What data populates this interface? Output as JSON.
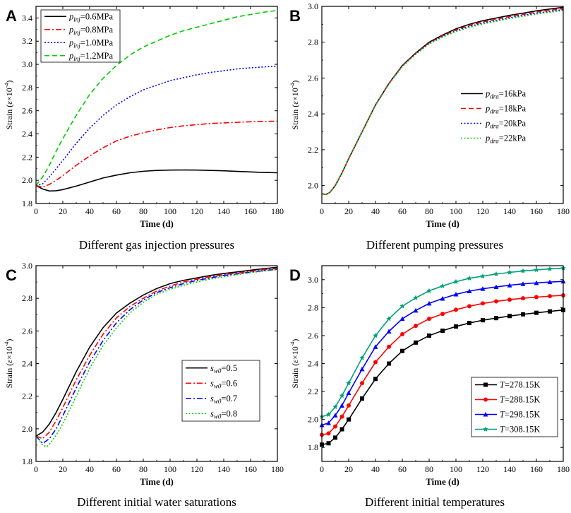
{
  "chart_data": [
    {
      "panel_label": "A",
      "type": "line",
      "caption": "Different gas injection pressures",
      "xlabel": "Time (d)",
      "ylabel": {
        "prefix": "Strain (",
        "symbol": "ε",
        "unit": "×10",
        "exp": "-4",
        "suffix": ")"
      },
      "xlim": [
        0,
        180
      ],
      "ylim": [
        1.8,
        3.5
      ],
      "xticks": [
        0,
        20,
        40,
        60,
        80,
        100,
        120,
        140,
        160,
        180
      ],
      "yticks": [
        1.8,
        2.0,
        2.2,
        2.4,
        2.6,
        2.8,
        3.0,
        3.2,
        3.4
      ],
      "legend_position": "top-left",
      "series": [
        {
          "name": "p_inj=0.6MPa",
          "sym": "p",
          "sub": "inj",
          "val": "=0.6MPa",
          "color": "#000000",
          "dash": "solid",
          "x": [
            0,
            5,
            10,
            15,
            20,
            30,
            40,
            50,
            60,
            70,
            80,
            90,
            100,
            110,
            120,
            130,
            140,
            150,
            160,
            170,
            180
          ],
          "y": [
            1.955,
            1.925,
            1.908,
            1.91,
            1.92,
            1.95,
            1.985,
            2.02,
            2.045,
            2.065,
            2.078,
            2.085,
            2.088,
            2.089,
            2.088,
            2.085,
            2.082,
            2.077,
            2.072,
            2.068,
            2.065
          ]
        },
        {
          "name": "p_inj=0.8MPa",
          "sym": "p",
          "sub": "inj",
          "val": "=0.8MPa",
          "color": "#ff0000",
          "dash": "dashdot",
          "x": [
            0,
            5,
            10,
            15,
            20,
            30,
            40,
            50,
            60,
            70,
            80,
            90,
            100,
            110,
            120,
            130,
            140,
            150,
            160,
            170,
            180
          ],
          "y": [
            1.955,
            1.94,
            1.965,
            2.0,
            2.04,
            2.13,
            2.21,
            2.28,
            2.34,
            2.38,
            2.41,
            2.435,
            2.455,
            2.47,
            2.48,
            2.49,
            2.495,
            2.5,
            2.505,
            2.508,
            2.51
          ]
        },
        {
          "name": "p_inj=1.0MPa",
          "sym": "p",
          "sub": "inj",
          "val": "=1.0MPa",
          "color": "#0000ff",
          "dash": "dot",
          "x": [
            0,
            5,
            10,
            15,
            20,
            30,
            40,
            50,
            60,
            70,
            80,
            90,
            100,
            110,
            120,
            130,
            140,
            150,
            160,
            170,
            180
          ],
          "y": [
            1.955,
            1.97,
            2.03,
            2.1,
            2.17,
            2.32,
            2.45,
            2.56,
            2.65,
            2.72,
            2.78,
            2.82,
            2.86,
            2.885,
            2.91,
            2.93,
            2.945,
            2.96,
            2.97,
            2.978,
            2.985
          ]
        },
        {
          "name": "p_inj=1.2MPa",
          "sym": "p",
          "sub": "inj",
          "val": "=1.2MPa",
          "color": "#00cc00",
          "dash": "dash",
          "x": [
            0,
            5,
            10,
            15,
            20,
            30,
            40,
            50,
            60,
            70,
            80,
            90,
            100,
            110,
            120,
            130,
            140,
            150,
            160,
            170,
            180
          ],
          "y": [
            1.955,
            2.03,
            2.13,
            2.25,
            2.36,
            2.56,
            2.74,
            2.88,
            2.99,
            3.08,
            3.15,
            3.2,
            3.25,
            3.29,
            3.32,
            3.35,
            3.38,
            3.41,
            3.43,
            3.45,
            3.465
          ]
        }
      ]
    },
    {
      "panel_label": "B",
      "type": "line",
      "caption": "Different pumping pressures",
      "xlabel": "Time (d)",
      "ylabel": {
        "prefix": "Strain (",
        "symbol": "ε",
        "unit": "×10",
        "exp": "-4",
        "suffix": ")"
      },
      "xlim": [
        0,
        180
      ],
      "ylim": [
        1.9,
        3.0
      ],
      "xticks": [
        0,
        20,
        40,
        60,
        80,
        100,
        120,
        140,
        160,
        180
      ],
      "yticks": [
        2.0,
        2.2,
        2.4,
        2.6,
        2.8,
        3.0
      ],
      "legend_position": "center-right",
      "series": [
        {
          "name": "p_dra=16kPa",
          "sym": "p",
          "sub": "dra",
          "val": "=16kPa",
          "color": "#000000",
          "dash": "solid",
          "x": [
            0,
            3,
            6,
            10,
            15,
            20,
            30,
            40,
            50,
            60,
            70,
            80,
            90,
            100,
            110,
            120,
            130,
            140,
            150,
            160,
            170,
            180
          ],
          "y": [
            1.955,
            1.95,
            1.962,
            2.0,
            2.07,
            2.15,
            2.3,
            2.45,
            2.57,
            2.67,
            2.74,
            2.8,
            2.84,
            2.875,
            2.9,
            2.92,
            2.935,
            2.95,
            2.962,
            2.975,
            2.985,
            2.995
          ]
        },
        {
          "name": "p_dra=18kPa",
          "sym": "p",
          "sub": "dra",
          "val": "=18kPa",
          "color": "#ff0000",
          "dash": "dash",
          "x": [
            0,
            3,
            6,
            10,
            15,
            20,
            30,
            40,
            50,
            60,
            70,
            80,
            90,
            100,
            110,
            120,
            130,
            140,
            150,
            160,
            170,
            180
          ],
          "y": [
            1.955,
            1.95,
            1.962,
            2.0,
            2.07,
            2.15,
            2.3,
            2.45,
            2.57,
            2.668,
            2.738,
            2.796,
            2.836,
            2.869,
            2.893,
            2.913,
            2.928,
            2.943,
            2.955,
            2.968,
            2.978,
            2.988
          ]
        },
        {
          "name": "p_dra=20kPa",
          "sym": "p",
          "sub": "dra",
          "val": "=20kPa",
          "color": "#0000ff",
          "dash": "dot",
          "x": [
            0,
            3,
            6,
            10,
            15,
            20,
            30,
            40,
            50,
            60,
            70,
            80,
            90,
            100,
            110,
            120,
            130,
            140,
            150,
            160,
            170,
            180
          ],
          "y": [
            1.955,
            1.95,
            1.962,
            2.0,
            2.07,
            2.15,
            2.3,
            2.45,
            2.568,
            2.666,
            2.735,
            2.793,
            2.832,
            2.864,
            2.888,
            2.907,
            2.922,
            2.937,
            2.95,
            2.962,
            2.972,
            2.982
          ]
        },
        {
          "name": "p_dra=22kPa",
          "sym": "p",
          "sub": "dra",
          "val": "=22kPa",
          "color": "#00cc00",
          "dash": "dot",
          "x": [
            0,
            3,
            6,
            10,
            15,
            20,
            30,
            40,
            50,
            60,
            70,
            80,
            90,
            100,
            110,
            120,
            130,
            140,
            150,
            160,
            170,
            180
          ],
          "y": [
            1.955,
            1.95,
            1.962,
            2.0,
            2.07,
            2.15,
            2.3,
            2.448,
            2.566,
            2.664,
            2.732,
            2.79,
            2.828,
            2.86,
            2.883,
            2.902,
            2.917,
            2.932,
            2.945,
            2.957,
            2.967,
            2.977
          ]
        }
      ]
    },
    {
      "panel_label": "C",
      "type": "line",
      "caption": "Different initial water saturations",
      "xlabel": "Time (d)",
      "ylabel": {
        "prefix": "Strain (",
        "symbol": "ε",
        "unit": "×10",
        "exp": "-4",
        "suffix": ")"
      },
      "xlim": [
        0,
        180
      ],
      "ylim": [
        1.8,
        3.0
      ],
      "xticks": [
        0,
        20,
        40,
        60,
        80,
        100,
        120,
        140,
        160,
        180
      ],
      "yticks": [
        1.8,
        2.0,
        2.2,
        2.4,
        2.6,
        2.8,
        3.0
      ],
      "legend_position": "center-right",
      "series": [
        {
          "name": "s_w0=0.5",
          "sym": "s",
          "sub": "w0",
          "val": "=0.5",
          "color": "#000000",
          "dash": "solid",
          "x": [
            0,
            5,
            10,
            15,
            20,
            30,
            40,
            50,
            60,
            70,
            80,
            90,
            100,
            110,
            120,
            130,
            140,
            150,
            160,
            170,
            180
          ],
          "y": [
            1.955,
            1.98,
            2.03,
            2.1,
            2.18,
            2.35,
            2.5,
            2.62,
            2.71,
            2.77,
            2.82,
            2.86,
            2.89,
            2.91,
            2.925,
            2.94,
            2.952,
            2.962,
            2.972,
            2.982,
            2.99
          ]
        },
        {
          "name": "s_w0=0.6",
          "sym": "s",
          "sub": "w0",
          "val": "=0.6",
          "color": "#ff0000",
          "dash": "dashdot",
          "x": [
            0,
            5,
            10,
            15,
            20,
            30,
            40,
            50,
            60,
            70,
            80,
            90,
            100,
            110,
            120,
            130,
            140,
            150,
            160,
            170,
            180
          ],
          "y": [
            1.955,
            1.94,
            1.98,
            2.05,
            2.13,
            2.3,
            2.45,
            2.58,
            2.68,
            2.75,
            2.8,
            2.845,
            2.875,
            2.9,
            2.917,
            2.932,
            2.945,
            2.955,
            2.965,
            2.975,
            2.983
          ]
        },
        {
          "name": "s_w0=0.7",
          "sym": "s",
          "sub": "w0",
          "val": "=0.7",
          "color": "#0000ff",
          "dash": "dashdot",
          "x": [
            0,
            5,
            10,
            15,
            20,
            30,
            40,
            50,
            60,
            70,
            80,
            90,
            100,
            110,
            120,
            130,
            140,
            150,
            160,
            170,
            180
          ],
          "y": [
            1.955,
            1.91,
            1.94,
            2.0,
            2.08,
            2.25,
            2.41,
            2.54,
            2.65,
            2.73,
            2.79,
            2.835,
            2.865,
            2.89,
            2.91,
            2.925,
            2.94,
            2.95,
            2.96,
            2.97,
            2.978
          ]
        },
        {
          "name": "s_w0=0.8",
          "sym": "s",
          "sub": "w0",
          "val": "=0.8",
          "color": "#00cc00",
          "dash": "dot",
          "x": [
            0,
            5,
            8,
            10,
            15,
            20,
            30,
            40,
            50,
            60,
            70,
            80,
            90,
            100,
            110,
            120,
            130,
            140,
            150,
            160,
            170,
            180
          ],
          "y": [
            1.955,
            1.9,
            1.89,
            1.905,
            1.96,
            2.03,
            2.2,
            2.37,
            2.51,
            2.62,
            2.71,
            2.775,
            2.825,
            2.855,
            2.88,
            2.9,
            2.918,
            2.932,
            2.945,
            2.957,
            2.967,
            2.975
          ]
        }
      ]
    },
    {
      "panel_label": "D",
      "type": "line",
      "caption": "Different initial temperatures",
      "xlabel": "Time (d)",
      "ylabel": {
        "prefix": "Strain (",
        "symbol": "ε",
        "unit": "×10",
        "exp": "-4",
        "suffix": ")"
      },
      "xlim": [
        0,
        180
      ],
      "ylim": [
        1.7,
        3.1
      ],
      "xticks": [
        0,
        20,
        40,
        60,
        80,
        100,
        120,
        140,
        160,
        180
      ],
      "yticks": [
        1.8,
        2.0,
        2.2,
        2.4,
        2.6,
        2.8,
        3.0
      ],
      "legend_position": "bottom-right",
      "series": [
        {
          "name": "T=278.15K",
          "sym": "T",
          "sub": "",
          "val": "=278.15K",
          "color": "#000000",
          "dash": "solid",
          "marker": "square",
          "x": [
            0,
            5,
            10,
            15,
            20,
            30,
            40,
            50,
            60,
            70,
            80,
            90,
            100,
            110,
            120,
            130,
            140,
            150,
            160,
            170,
            180
          ],
          "y": [
            1.82,
            1.83,
            1.87,
            1.93,
            2.0,
            2.15,
            2.29,
            2.4,
            2.49,
            2.55,
            2.6,
            2.635,
            2.665,
            2.69,
            2.71,
            2.725,
            2.74,
            2.752,
            2.763,
            2.773,
            2.783
          ]
        },
        {
          "name": "T=288.15K",
          "sym": "T",
          "sub": "",
          "val": "=288.15K",
          "color": "#ff0000",
          "dash": "solid",
          "marker": "circle",
          "x": [
            0,
            5,
            10,
            15,
            20,
            30,
            40,
            50,
            60,
            70,
            80,
            90,
            100,
            110,
            120,
            130,
            140,
            150,
            160,
            170,
            180
          ],
          "y": [
            1.89,
            1.9,
            1.95,
            2.02,
            2.1,
            2.26,
            2.41,
            2.52,
            2.61,
            2.67,
            2.72,
            2.755,
            2.785,
            2.81,
            2.83,
            2.845,
            2.857,
            2.867,
            2.875,
            2.882,
            2.888
          ]
        },
        {
          "name": "T=298.15K",
          "sym": "T",
          "sub": "",
          "val": "=298.15K",
          "color": "#0000ff",
          "dash": "solid",
          "marker": "triangle",
          "x": [
            0,
            5,
            10,
            15,
            20,
            30,
            40,
            50,
            60,
            70,
            80,
            90,
            100,
            110,
            120,
            130,
            140,
            150,
            160,
            170,
            180
          ],
          "y": [
            1.96,
            1.975,
            2.03,
            2.1,
            2.19,
            2.36,
            2.52,
            2.63,
            2.72,
            2.78,
            2.83,
            2.865,
            2.895,
            2.918,
            2.935,
            2.948,
            2.96,
            2.97,
            2.977,
            2.983,
            2.988
          ]
        },
        {
          "name": "T=308.15K",
          "sym": "T",
          "sub": "",
          "val": "=308.15K",
          "color": "#00a07a",
          "dash": "solid",
          "marker": "star",
          "x": [
            0,
            5,
            10,
            15,
            20,
            30,
            40,
            50,
            60,
            70,
            80,
            90,
            100,
            110,
            120,
            130,
            140,
            150,
            160,
            170,
            180
          ],
          "y": [
            2.02,
            2.035,
            2.09,
            2.17,
            2.26,
            2.44,
            2.6,
            2.72,
            2.81,
            2.87,
            2.92,
            2.955,
            2.985,
            3.01,
            3.025,
            3.04,
            3.052,
            3.062,
            3.07,
            3.077,
            3.082
          ]
        }
      ]
    }
  ]
}
